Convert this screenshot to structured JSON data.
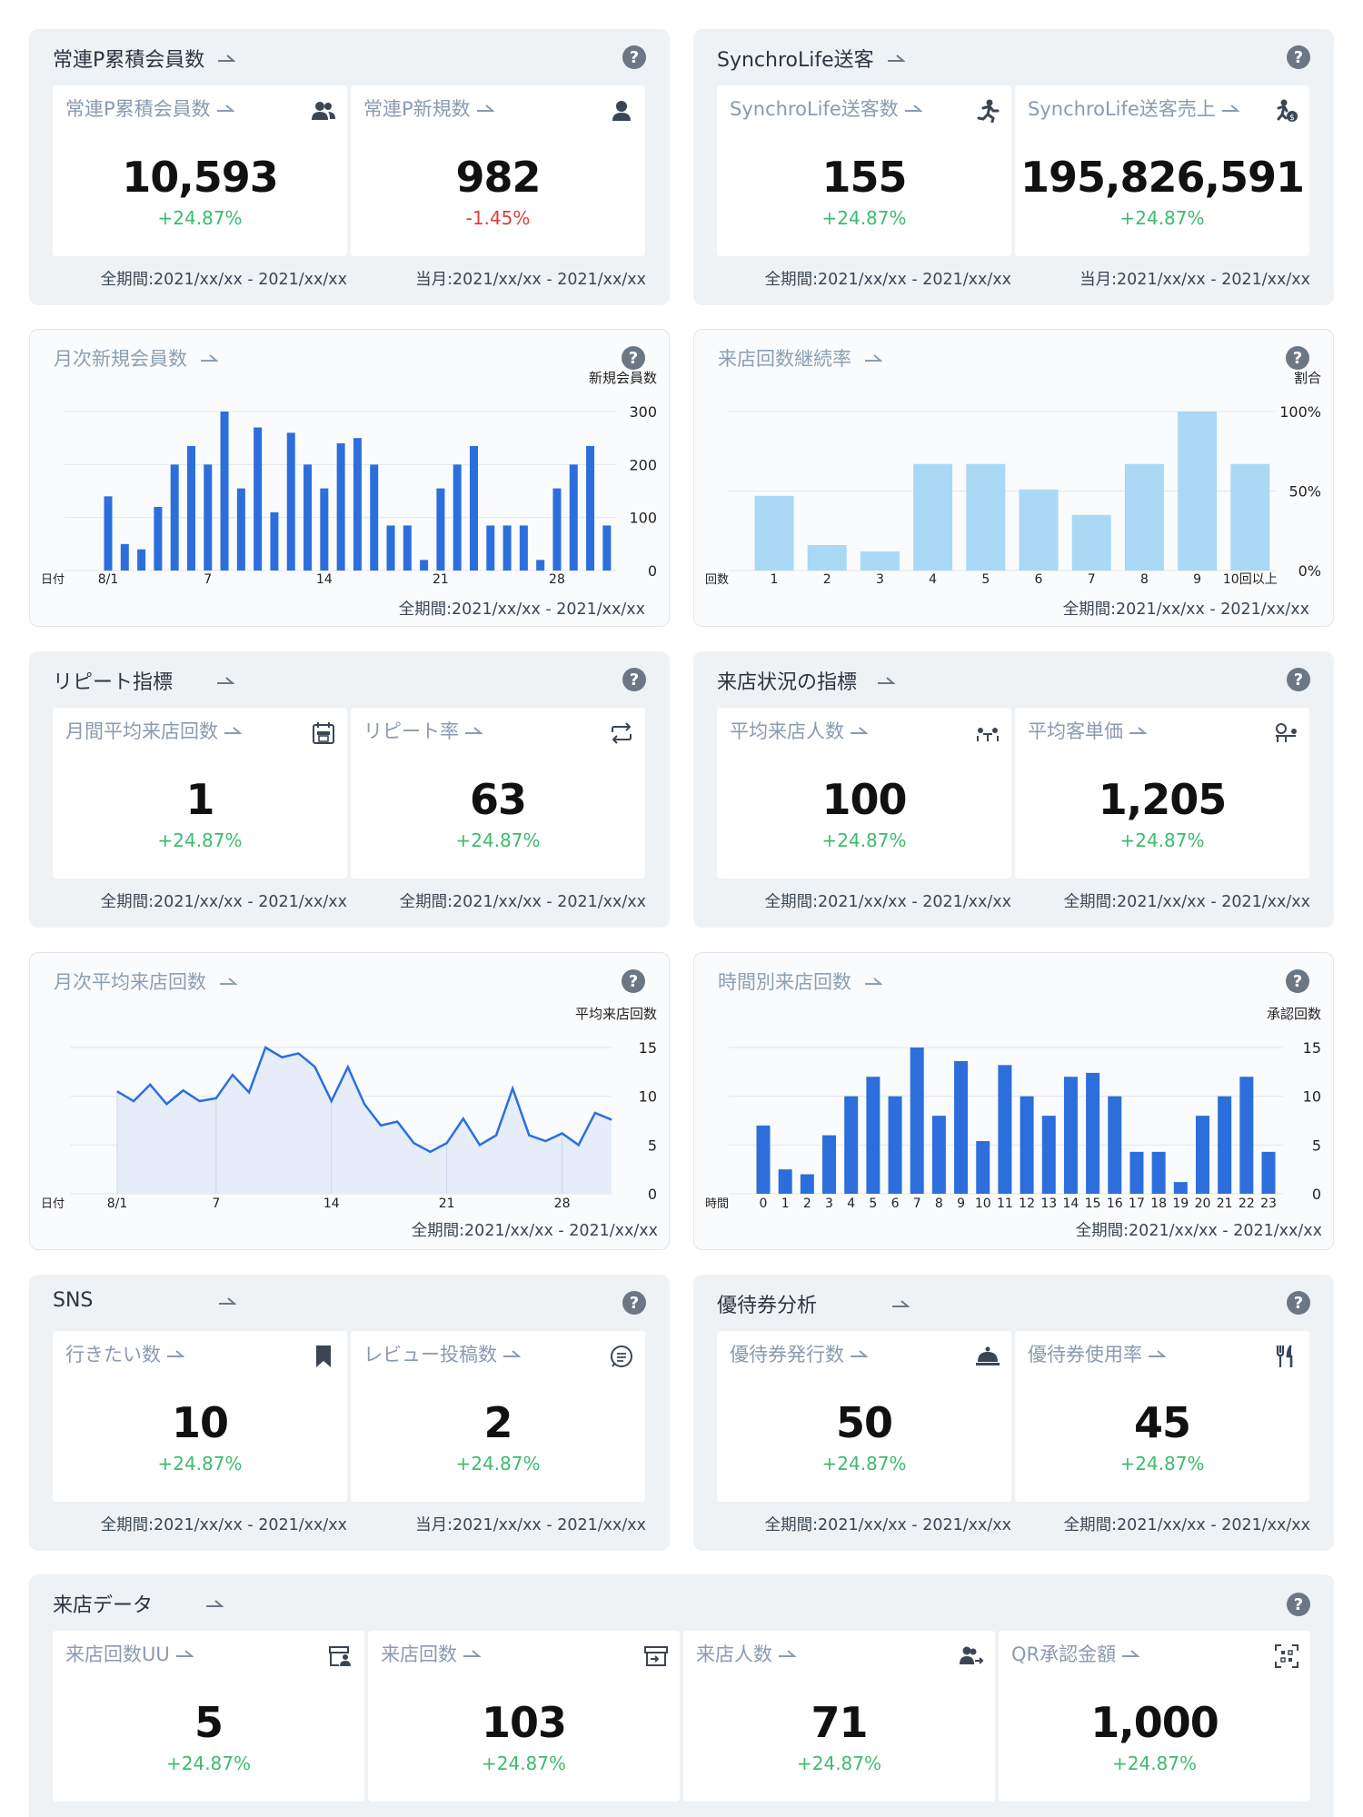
{
  "panels": {
    "member": {
      "title": "常連P累積会員数",
      "cards": [
        {
          "label": "常連P累積会員数",
          "icon": "users-icon",
          "value": "10,593",
          "change": "+24.87%",
          "period": "全期間:2021/xx/xx - 2021/xx/xx"
        },
        {
          "label": "常連P新規数",
          "icon": "user-icon",
          "value": "982",
          "change": "-1.45%",
          "period": "当月:2021/xx/xx - 2021/xx/xx"
        }
      ]
    },
    "synchro": {
      "title": "SynchroLife送客",
      "cards": [
        {
          "label": "SynchroLife送客数",
          "icon": "runner-icon",
          "value": "155",
          "change": "+24.87%",
          "period": "全期間:2021/xx/xx - 2021/xx/xx"
        },
        {
          "label": "SynchroLife送客売上",
          "icon": "runner-money-icon",
          "value": "195,826,591",
          "change": "+24.87%",
          "period": "当月:2021/xx/xx - 2021/xx/xx"
        }
      ]
    },
    "repeat": {
      "title": "リピート指標",
      "cards": [
        {
          "label": "月間平均来店回数",
          "icon": "calendar-store-icon",
          "value": "1",
          "change": "+24.87%",
          "period": "全期間:2021/xx/xx - 2021/xx/xx"
        },
        {
          "label": "リピート率",
          "icon": "repeat-icon",
          "value": "63",
          "change": "+24.87%",
          "period": "全期間:2021/xx/xx - 2021/xx/xx"
        }
      ]
    },
    "visit_status": {
      "title": "来店状況の指標",
      "cards": [
        {
          "label": "平均来店人数",
          "icon": "table-people-icon",
          "value": "100",
          "change": "+24.87%",
          "period": "全期間:2021/xx/xx - 2021/xx/xx"
        },
        {
          "label": "平均客単価",
          "icon": "table-money-icon",
          "value": "1,205",
          "change": "+24.87%",
          "period": "全期間:2021/xx/xx - 2021/xx/xx"
        }
      ]
    },
    "sns": {
      "title": "SNS",
      "cards": [
        {
          "label": "行きたい数",
          "icon": "bookmark-icon",
          "value": "10",
          "change": "+24.87%",
          "period": "全期間:2021/xx/xx - 2021/xx/xx"
        },
        {
          "label": "レビュー投稿数",
          "icon": "comment-icon",
          "value": "2",
          "change": "+24.87%",
          "period": "当月:2021/xx/xx - 2021/xx/xx"
        }
      ]
    },
    "coupon": {
      "title": "優待券分析",
      "cards": [
        {
          "label": "優待券発行数",
          "icon": "cloche-icon",
          "value": "50",
          "change": "+24.87%",
          "period": "全期間:2021/xx/xx - 2021/xx/xx"
        },
        {
          "label": "優待券使用率",
          "icon": "fork-knife-icon",
          "value": "45",
          "change": "+24.87%",
          "period": "全期間:2021/xx/xx - 2021/xx/xx"
        }
      ]
    },
    "visit_data": {
      "title": "来店データ",
      "cards": [
        {
          "label": "来店回数UU",
          "icon": "store-user-icon",
          "value": "5",
          "change": "+24.87%"
        },
        {
          "label": "来店回数",
          "icon": "store-enter-icon",
          "value": "103",
          "change": "+24.87%"
        },
        {
          "label": "来店人数",
          "icon": "people-arrow-icon",
          "value": "71",
          "change": "+24.87%"
        },
        {
          "label": "QR承認金額",
          "icon": "qr-scan-icon",
          "value": "1,000",
          "change": "+24.87%"
        }
      ]
    }
  },
  "charts": {
    "monthly_new": {
      "title": "月次新規会員数",
      "period": "全期間:2021/xx/xx - 2021/xx/xx"
    },
    "visit_rate": {
      "title": "来店回数継続率",
      "period": "全期間:2021/xx/xx - 2021/xx/xx"
    },
    "monthly_avg": {
      "title": "月次平均来店回数",
      "period": "全期間:2021/xx/xx - 2021/xx/xx"
    },
    "hourly": {
      "title": "時間別来店回数",
      "period": "全期間:2021/xx/xx - 2021/xx/xx"
    }
  },
  "chart_data": [
    {
      "id": "monthly_new",
      "type": "bar",
      "xlabel": "日付",
      "ylabel": "新規会員数",
      "ylim": [
        0,
        300
      ],
      "yticks": [
        0,
        100,
        200,
        300
      ],
      "xticks": [
        "8/1",
        "7",
        "14",
        "21",
        "28"
      ],
      "xtick_index": [
        0,
        6,
        13,
        20,
        27
      ],
      "color": "#2c6fdc",
      "values": [
        140,
        50,
        40,
        120,
        200,
        235,
        200,
        300,
        155,
        270,
        110,
        260,
        200,
        155,
        240,
        250,
        200,
        85,
        85,
        20,
        155,
        200,
        235,
        85,
        85,
        85,
        20,
        155,
        200,
        235,
        85
      ]
    },
    {
      "id": "visit_rate",
      "type": "bar",
      "xlabel": "回数",
      "ylabel": "割合",
      "ylim": [
        0,
        100
      ],
      "yticks": [
        "0%",
        "50%",
        "100%"
      ],
      "categories": [
        "1",
        "2",
        "3",
        "4",
        "5",
        "6",
        "7",
        "8",
        "9",
        "10回以上"
      ],
      "color": "#a9d9f5",
      "values": [
        47,
        16,
        12,
        67,
        67,
        51,
        35,
        67,
        100,
        67
      ]
    },
    {
      "id": "monthly_avg",
      "type": "area",
      "xlabel": "日付",
      "ylabel": "平均来店回数",
      "ylim": [
        0,
        15
      ],
      "yticks": [
        0,
        5,
        10,
        15
      ],
      "xticks": [
        "8/1",
        "7",
        "14",
        "21",
        "28"
      ],
      "xtick_index": [
        0,
        6,
        13,
        20,
        27
      ],
      "color": "#2c6fdc",
      "values": [
        10.5,
        9.5,
        11.2,
        9.2,
        10.6,
        9.5,
        9.8,
        12.2,
        10.4,
        15.0,
        14.0,
        14.4,
        13.0,
        9.5,
        13.0,
        9.2,
        7.0,
        7.4,
        5.2,
        4.3,
        5.2,
        7.7,
        5.0,
        6.0,
        10.8,
        6.0,
        5.4,
        6.2,
        5.0,
        8.3,
        7.6
      ]
    },
    {
      "id": "hourly",
      "type": "bar",
      "xlabel": "時間",
      "ylabel": "承認回数",
      "ylim": [
        0,
        15
      ],
      "yticks": [
        0,
        5,
        10,
        15
      ],
      "categories": [
        "0",
        "1",
        "2",
        "3",
        "4",
        "5",
        "6",
        "7",
        "8",
        "9",
        "10",
        "11",
        "12",
        "13",
        "14",
        "15",
        "16",
        "17",
        "18",
        "19",
        "20",
        "21",
        "22",
        "23"
      ],
      "color": "#2c6fdc",
      "values": [
        7,
        2.5,
        2,
        6,
        10,
        12,
        10,
        15,
        8,
        13.6,
        5.4,
        13.2,
        10,
        8,
        12,
        12.4,
        10,
        4.3,
        4.3,
        1.2,
        8,
        10,
        12,
        4.3
      ]
    }
  ]
}
